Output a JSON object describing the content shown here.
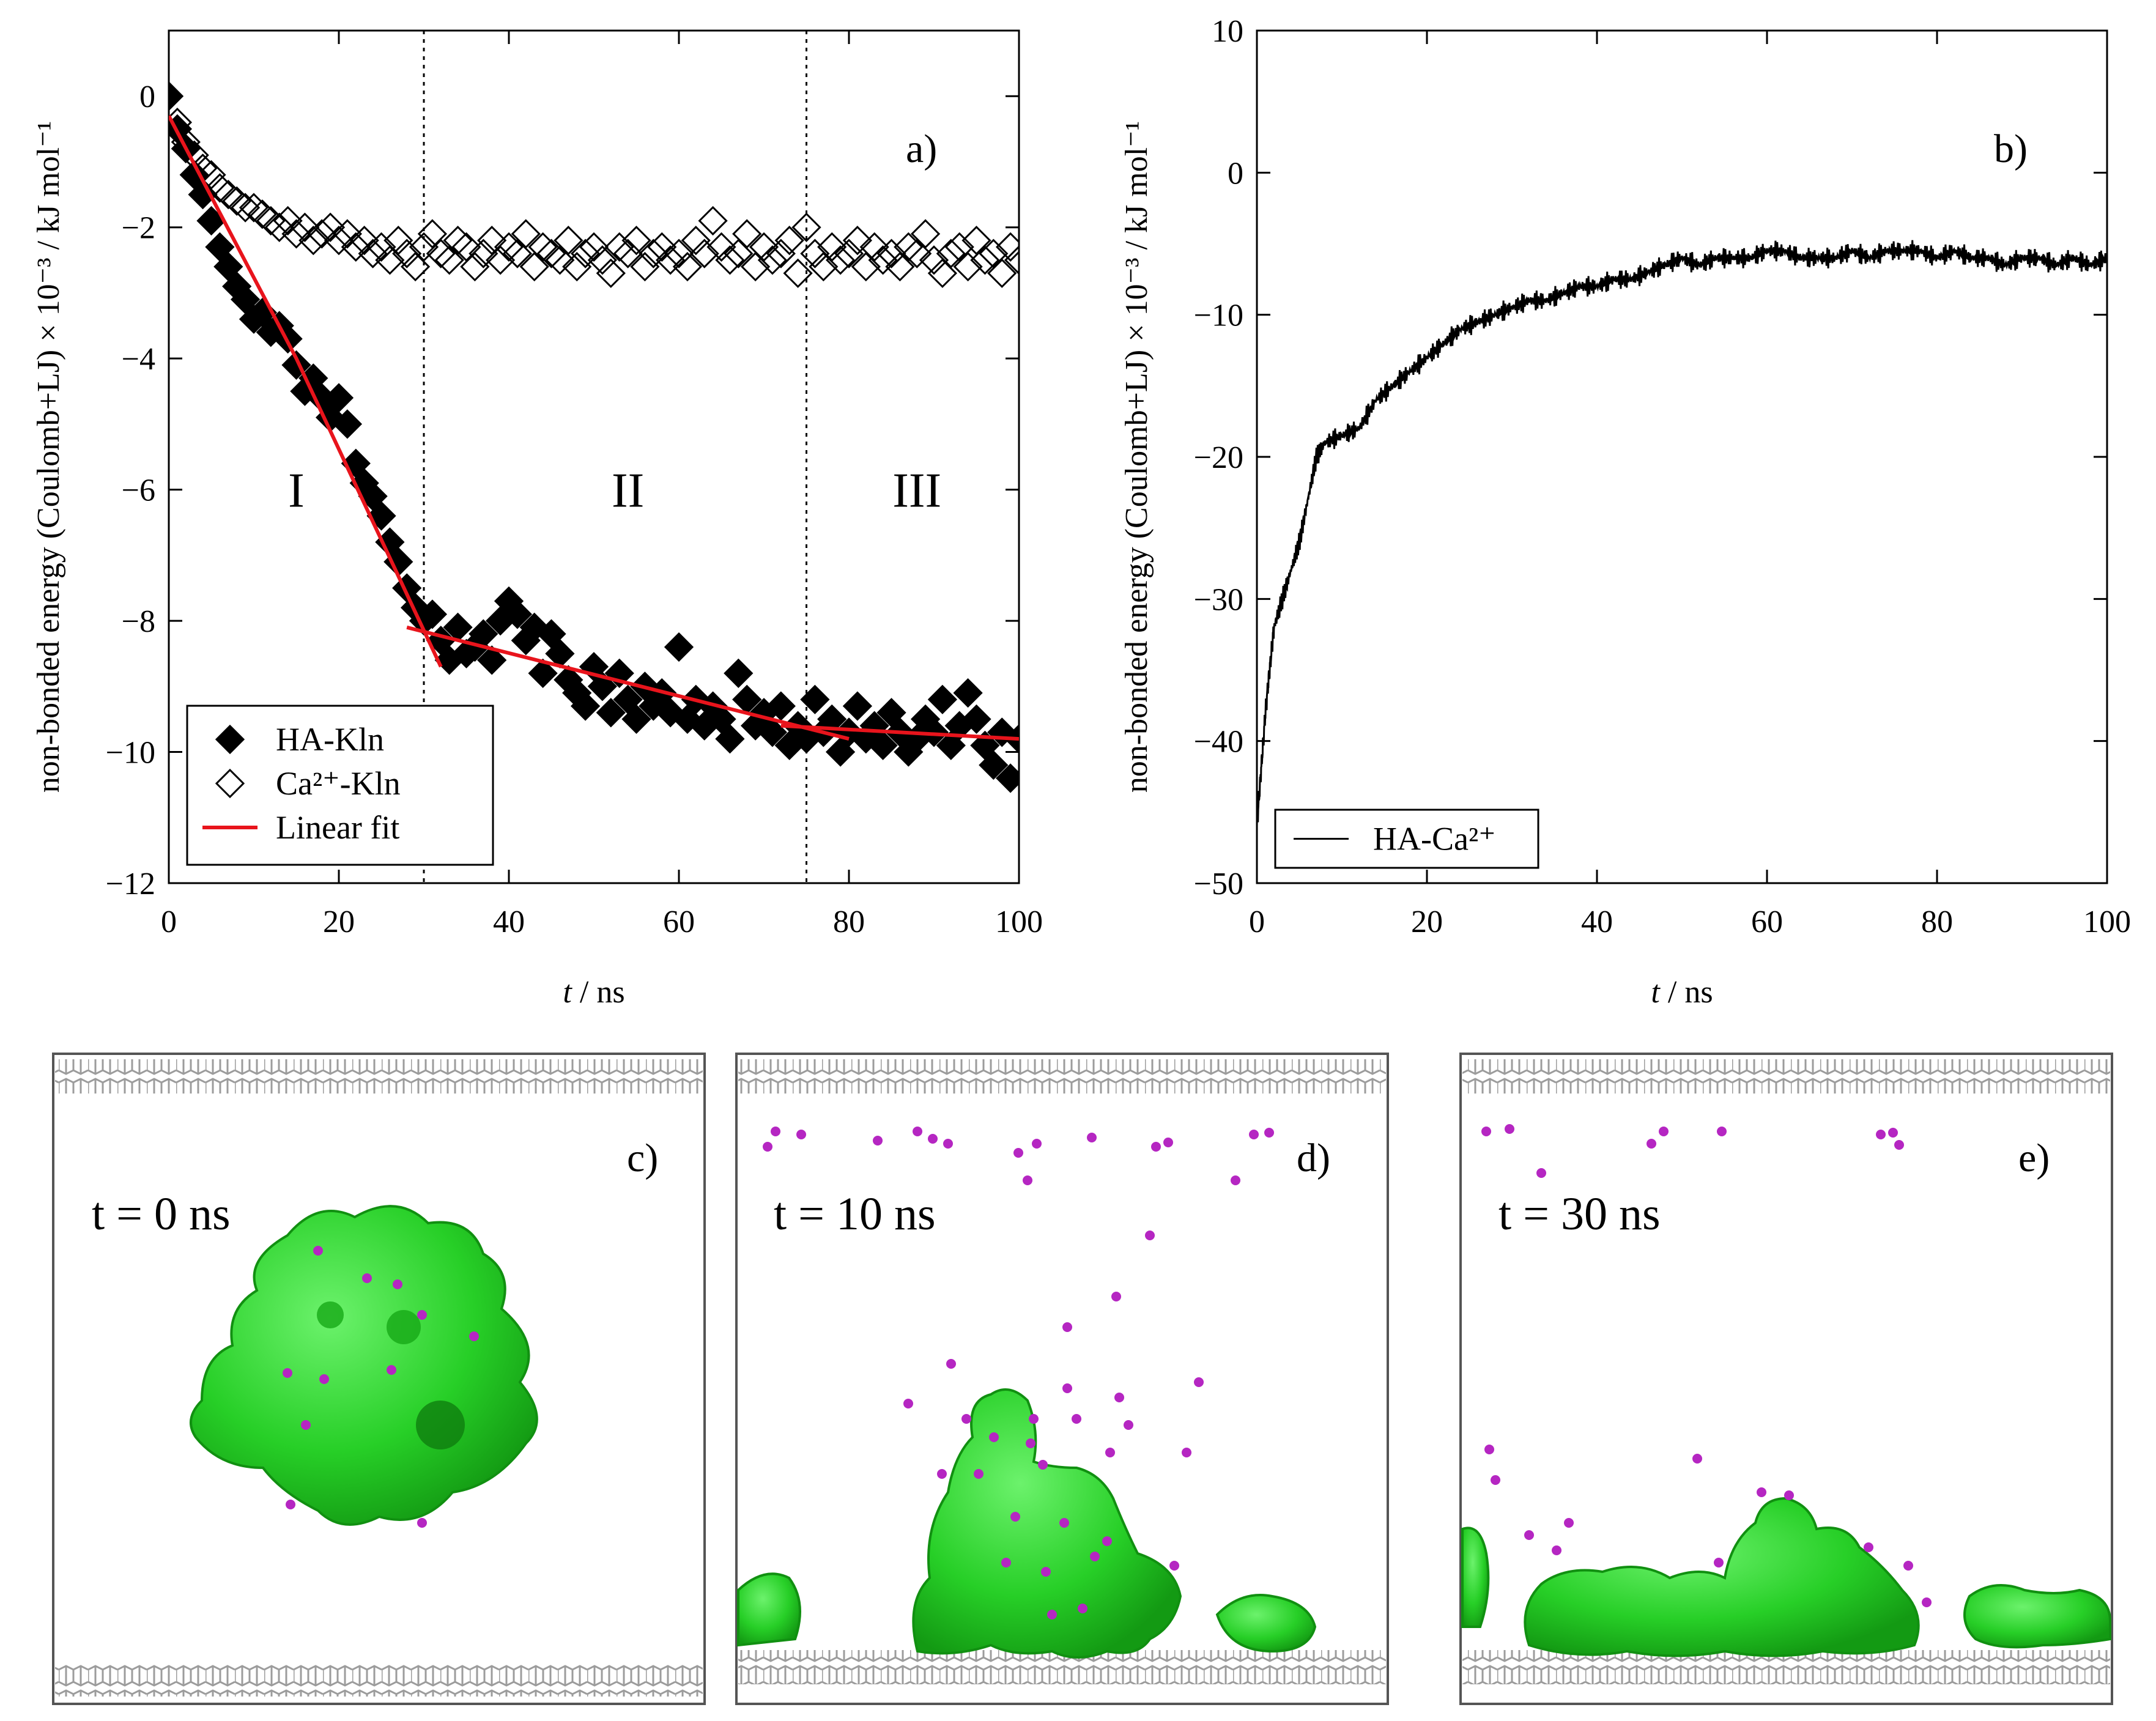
{
  "chart_data": [
    {
      "type": "scatter",
      "panel_label": "a)",
      "xlabel_var": "t",
      "xlabel_unit": " / ns",
      "ylabel": "non-bonded energy (Coulomb+LJ) × 10⁻³ / kJ mol⁻¹",
      "xlim": [
        0,
        100
      ],
      "ylim": [
        -12,
        1
      ],
      "xticks": [
        0,
        20,
        40,
        60,
        80,
        100
      ],
      "yticks": [
        0,
        -2,
        -4,
        -6,
        -8,
        -10,
        -12
      ],
      "ytick_labels": [
        "0",
        "−2",
        "−4",
        "−6",
        "−8",
        "−10",
        "−12"
      ],
      "vlines": [
        30,
        75
      ],
      "regions": [
        {
          "label": "I",
          "x": 15,
          "y": -6
        },
        {
          "label": "II",
          "x": 54,
          "y": -6
        },
        {
          "label": "III",
          "x": 88,
          "y": -6
        }
      ],
      "legend_position": "bottom-left",
      "series": [
        {
          "name": "HA-Kln",
          "marker": "filled-diamond",
          "color": "#000000",
          "x": [
            0,
            1,
            2,
            3,
            4,
            5,
            6,
            7,
            8,
            9,
            10,
            11,
            12,
            13,
            14,
            15,
            16,
            17,
            18,
            19,
            20,
            21,
            22,
            23,
            24,
            25,
            26,
            27,
            28,
            29,
            30,
            31,
            32,
            33,
            34,
            35,
            36,
            37,
            38,
            39,
            40,
            41,
            42,
            43,
            44,
            45,
            46,
            47,
            48,
            49,
            50,
            51,
            52,
            53,
            54,
            55,
            56,
            57,
            58,
            59,
            60,
            61,
            62,
            63,
            64,
            65,
            66,
            67,
            68,
            69,
            70,
            71,
            72,
            73,
            74,
            75,
            76,
            77,
            78,
            79,
            80,
            81,
            82,
            83,
            84,
            85,
            86,
            87,
            88,
            89,
            90,
            91,
            92,
            93,
            94,
            95,
            96,
            97,
            98,
            99,
            100
          ],
          "y": [
            0.0,
            -0.5,
            -0.8,
            -1.2,
            -1.5,
            -1.9,
            -2.3,
            -2.6,
            -2.9,
            -3.1,
            -3.4,
            -3.3,
            -3.6,
            -3.5,
            -3.7,
            -4.1,
            -4.5,
            -4.3,
            -4.6,
            -4.9,
            -4.6,
            -5.0,
            -5.6,
            -5.9,
            -6.1,
            -6.4,
            -6.8,
            -7.1,
            -7.5,
            -7.8,
            -8.0,
            -7.9,
            -8.3,
            -8.6,
            -8.1,
            -8.5,
            -8.4,
            -8.2,
            -8.6,
            -8.0,
            -7.7,
            -7.9,
            -8.3,
            -8.1,
            -8.8,
            -8.2,
            -8.5,
            -8.9,
            -9.1,
            -9.3,
            -8.7,
            -9.0,
            -9.4,
            -8.8,
            -9.2,
            -9.5,
            -9.0,
            -9.3,
            -9.1,
            -9.4,
            -8.4,
            -9.5,
            -9.2,
            -9.6,
            -9.3,
            -9.5,
            -9.8,
            -8.8,
            -9.2,
            -9.6,
            -9.4,
            -9.7,
            -9.3,
            -9.9,
            -9.6,
            -9.8,
            -9.2,
            -9.7,
            -9.5,
            -10.0,
            -9.7,
            -9.3,
            -9.8,
            -9.6,
            -9.9,
            -9.4,
            -9.7,
            -10.0,
            -9.8,
            -9.5,
            -9.7,
            -9.2,
            -9.9,
            -9.6,
            -9.1,
            -9.5,
            -9.9,
            -10.2,
            -9.7,
            -10.4,
            -9.8
          ]
        },
        {
          "name": "Ca²⁺-Kln",
          "marker": "open-diamond",
          "color": "#000000",
          "x": [
            0,
            1,
            2,
            3,
            4,
            5,
            6,
            7,
            8,
            9,
            10,
            11,
            12,
            13,
            14,
            15,
            16,
            17,
            18,
            19,
            20,
            21,
            22,
            23,
            24,
            25,
            26,
            27,
            28,
            29,
            30,
            31,
            32,
            33,
            34,
            35,
            36,
            37,
            38,
            39,
            40,
            41,
            42,
            43,
            44,
            45,
            46,
            47,
            48,
            49,
            50,
            51,
            52,
            53,
            54,
            55,
            56,
            57,
            58,
            59,
            60,
            61,
            62,
            63,
            64,
            65,
            66,
            67,
            68,
            69,
            70,
            71,
            72,
            73,
            74,
            75,
            76,
            77,
            78,
            79,
            80,
            81,
            82,
            83,
            84,
            85,
            86,
            87,
            88,
            89,
            90,
            91,
            92,
            93,
            94,
            95,
            96,
            97,
            98,
            99,
            100
          ],
          "y": [
            0.0,
            -0.4,
            -0.7,
            -0.9,
            -1.1,
            -1.2,
            -1.4,
            -1.5,
            -1.6,
            -1.7,
            -1.7,
            -1.8,
            -1.9,
            -2.0,
            -1.9,
            -2.1,
            -2.0,
            -2.2,
            -2.1,
            -2.0,
            -2.2,
            -2.1,
            -2.3,
            -2.2,
            -2.4,
            -2.3,
            -2.5,
            -2.2,
            -2.4,
            -2.6,
            -2.3,
            -2.1,
            -2.4,
            -2.5,
            -2.2,
            -2.3,
            -2.6,
            -2.4,
            -2.2,
            -2.5,
            -2.3,
            -2.4,
            -2.1,
            -2.6,
            -2.3,
            -2.4,
            -2.5,
            -2.2,
            -2.6,
            -2.4,
            -2.3,
            -2.5,
            -2.7,
            -2.3,
            -2.4,
            -2.2,
            -2.6,
            -2.4,
            -2.3,
            -2.5,
            -2.4,
            -2.6,
            -2.2,
            -2.4,
            -1.9,
            -2.3,
            -2.5,
            -2.4,
            -2.1,
            -2.6,
            -2.3,
            -2.5,
            -2.4,
            -2.2,
            -2.7,
            -2.0,
            -2.4,
            -2.6,
            -2.3,
            -2.5,
            -2.4,
            -2.2,
            -2.6,
            -2.3,
            -2.5,
            -2.4,
            -2.6,
            -2.3,
            -2.4,
            -2.1,
            -2.5,
            -2.7,
            -2.4,
            -2.3,
            -2.6,
            -2.2,
            -2.5,
            -2.4,
            -2.7,
            -2.3,
            -2.5
          ]
        },
        {
          "name": "Linear fit",
          "marker": "line",
          "color": "#e8141c",
          "segments": [
            [
              [
                0,
                -0.3
              ],
              [
                15,
                -4.0
              ],
              [
                32,
                -8.7
              ]
            ],
            [
              [
                28,
                -8.1
              ],
              [
                80,
                -9.8
              ]
            ],
            [
              [
                72,
                -9.6
              ],
              [
                100,
                -9.8
              ]
            ]
          ]
        }
      ]
    },
    {
      "type": "line",
      "panel_label": "b)",
      "xlabel_var": "t",
      "xlabel_unit": " / ns",
      "ylabel": "non-bonded energy (Coulomb+LJ) × 10⁻³ / kJ mol⁻¹",
      "xlim": [
        0,
        100
      ],
      "ylim": [
        -50,
        10
      ],
      "xticks": [
        0,
        20,
        40,
        60,
        80,
        100
      ],
      "yticks": [
        10,
        0,
        -10,
        -20,
        -30,
        -40,
        -50
      ],
      "ytick_labels": [
        "10",
        "0",
        "−10",
        "−20",
        "−30",
        "−40",
        "−50"
      ],
      "legend_position": "bottom-left",
      "series": [
        {
          "name": "HA-Ca²⁺",
          "color": "#000000",
          "x": [
            0,
            0.5,
            1,
            1.5,
            2,
            3,
            4,
            5,
            6,
            7,
            8,
            10,
            12,
            14,
            16,
            18,
            20,
            22,
            24,
            26,
            28,
            30,
            32,
            34,
            36,
            38,
            40,
            42,
            44,
            46,
            48,
            50,
            52,
            54,
            56,
            58,
            60,
            62,
            64,
            66,
            68,
            70,
            72,
            74,
            76,
            78,
            80,
            82,
            84,
            86,
            88,
            90,
            92,
            94,
            96,
            98,
            100
          ],
          "y": [
            -46,
            -42,
            -38,
            -35,
            -32,
            -30,
            -28,
            -26,
            -23,
            -20,
            -19,
            -18.5,
            -18,
            -16,
            -15,
            -14,
            -13,
            -12,
            -11,
            -10.5,
            -10,
            -9.5,
            -9,
            -9,
            -8.5,
            -8,
            -8,
            -7.5,
            -7.5,
            -7,
            -6.5,
            -6,
            -6.5,
            -6,
            -6,
            -6,
            -5.5,
            -5.5,
            -6,
            -6,
            -6,
            -5.5,
            -6,
            -5.5,
            -5.5,
            -5.5,
            -6,
            -5.5,
            -6,
            -6,
            -6.5,
            -6,
            -6,
            -6.5,
            -6,
            -6.5,
            -6
          ]
        }
      ]
    }
  ],
  "snapshots": [
    {
      "panel_label": "c)",
      "time_label": "t = 0 ns"
    },
    {
      "panel_label": "d)",
      "time_label": "t = 10 ns"
    },
    {
      "panel_label": "e)",
      "time_label": "t = 30 ns"
    }
  ],
  "colors": {
    "hydroxyapatite": "#2fd62f",
    "calcium_ion": "#b526c2",
    "kaolinite": "#8c8c8c"
  }
}
